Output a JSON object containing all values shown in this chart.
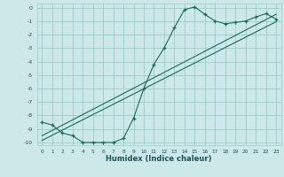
{
  "xlabel": "Humidex (Indice chaleur)",
  "background_color": "#cce8e8",
  "grid_color": "#99cccc",
  "line_color": "#1a6b5a",
  "xlim": [
    -0.5,
    23.5
  ],
  "ylim": [
    -10.2,
    0.3
  ],
  "xticks": [
    0,
    1,
    2,
    3,
    4,
    5,
    6,
    7,
    8,
    9,
    10,
    11,
    12,
    13,
    14,
    15,
    16,
    17,
    18,
    19,
    20,
    21,
    22,
    23
  ],
  "yticks": [
    0,
    -1,
    -2,
    -3,
    -4,
    -5,
    -6,
    -7,
    -8,
    -9,
    -10
  ],
  "curve1_x": [
    0,
    1,
    2,
    3,
    4,
    5,
    6,
    7,
    8,
    9,
    10,
    11,
    12,
    13,
    14,
    15,
    16,
    17,
    18,
    19,
    20,
    21,
    22,
    23
  ],
  "curve1_y": [
    -8.5,
    -8.7,
    -9.3,
    -9.5,
    -10.0,
    -10.0,
    -10.0,
    -10.0,
    -9.7,
    -8.2,
    -6.0,
    -4.2,
    -3.0,
    -1.5,
    -0.15,
    0.05,
    -0.5,
    -1.0,
    -1.2,
    -1.1,
    -1.0,
    -0.7,
    -0.45,
    -0.85
  ],
  "curve2_x": [
    0,
    23
  ],
  "curve2_y": [
    -9.5,
    -0.5
  ],
  "curve3_x": [
    0,
    23
  ],
  "curve3_y": [
    -9.85,
    -1.05
  ]
}
